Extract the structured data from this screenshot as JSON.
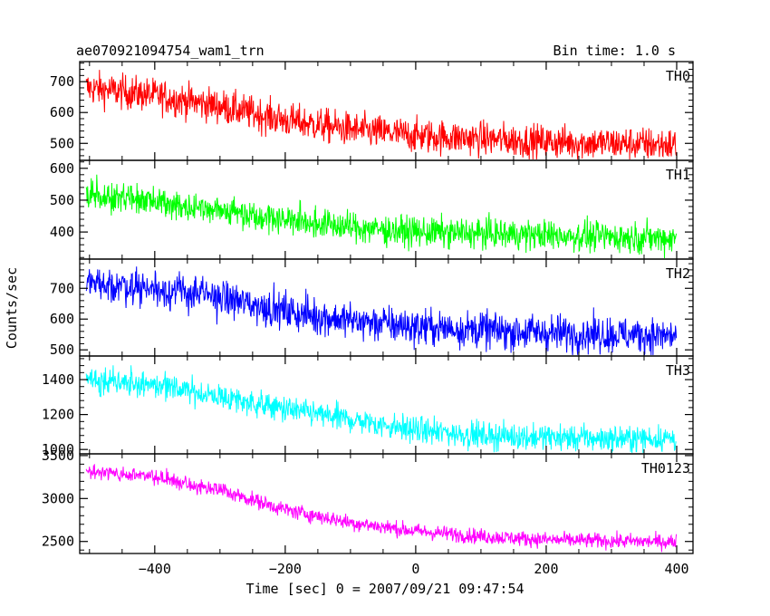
{
  "chart_data": {
    "type": "line",
    "title": "ae070921094754_wam1_trn",
    "subtitle": "Bin time: 1.0 s",
    "xlabel": "Time [sec] 0 = 2007/09/21 09:47:54",
    "ylabel": "Counts/sec",
    "xlim": [
      -515,
      425
    ],
    "x_ticks": [
      -400,
      -200,
      0,
      200,
      400
    ],
    "x_tick_labels": [
      "−400",
      "−200",
      "0",
      "200",
      "400"
    ],
    "grid": false,
    "panels": [
      {
        "name": "TH0",
        "color": "#ff0000",
        "ylim": [
          445,
          765
        ],
        "y_ticks": [
          500,
          600,
          700
        ],
        "y_tick_labels": [
          "500",
          "600",
          "700"
        ],
        "trend": [
          [
            -505,
            680
          ],
          [
            -400,
            655
          ],
          [
            -300,
            620
          ],
          [
            -200,
            575
          ],
          [
            -100,
            545
          ],
          [
            0,
            525
          ],
          [
            100,
            515
          ],
          [
            200,
            505
          ],
          [
            300,
            500
          ],
          [
            400,
            495
          ]
        ],
        "noise": 28
      },
      {
        "name": "TH1",
        "color": "#00ff00",
        "ylim": [
          315,
          625
        ],
        "y_ticks": [
          400,
          500,
          600
        ],
        "y_tick_labels": [
          "400",
          "500",
          "600"
        ],
        "trend": [
          [
            -505,
            520
          ],
          [
            -400,
            495
          ],
          [
            -300,
            470
          ],
          [
            -200,
            440
          ],
          [
            -100,
            415
          ],
          [
            0,
            400
          ],
          [
            100,
            395
          ],
          [
            200,
            390
          ],
          [
            300,
            385
          ],
          [
            400,
            380
          ]
        ],
        "noise": 24
      },
      {
        "name": "TH2",
        "color": "#0000ff",
        "ylim": [
          480,
          795
        ],
        "y_ticks": [
          500,
          600,
          700
        ],
        "y_tick_labels": [
          "500",
          "600",
          "700"
        ],
        "trend": [
          [
            -505,
            720
          ],
          [
            -400,
            700
          ],
          [
            -300,
            670
          ],
          [
            -200,
            625
          ],
          [
            -100,
            595
          ],
          [
            0,
            575
          ],
          [
            100,
            565
          ],
          [
            200,
            555
          ],
          [
            300,
            550
          ],
          [
            400,
            545
          ]
        ],
        "noise": 30
      },
      {
        "name": "TH3",
        "color": "#00ffff",
        "ylim": [
          975,
          1535
        ],
        "y_ticks": [
          1000,
          1200,
          1400
        ],
        "y_tick_labels": [
          "1000",
          "1200",
          "1400"
        ],
        "trend": [
          [
            -505,
            1410
          ],
          [
            -400,
            1370
          ],
          [
            -300,
            1300
          ],
          [
            -200,
            1230
          ],
          [
            -100,
            1170
          ],
          [
            0,
            1110
          ],
          [
            100,
            1080
          ],
          [
            200,
            1070
          ],
          [
            300,
            1060
          ],
          [
            400,
            1065
          ]
        ],
        "noise": 38
      },
      {
        "name": "TH0123",
        "color": "#ff00ff",
        "ylim": [
          2360,
          3520
        ],
        "y_ticks": [
          2500,
          3000,
          3500
        ],
        "y_tick_labels": [
          "2500",
          "3000",
          "3500"
        ],
        "trend": [
          [
            -505,
            3320
          ],
          [
            -400,
            3250
          ],
          [
            -300,
            3100
          ],
          [
            -200,
            2870
          ],
          [
            -100,
            2720
          ],
          [
            0,
            2620
          ],
          [
            100,
            2560
          ],
          [
            200,
            2520
          ],
          [
            300,
            2505
          ],
          [
            400,
            2495
          ]
        ],
        "noise": 45
      }
    ]
  }
}
